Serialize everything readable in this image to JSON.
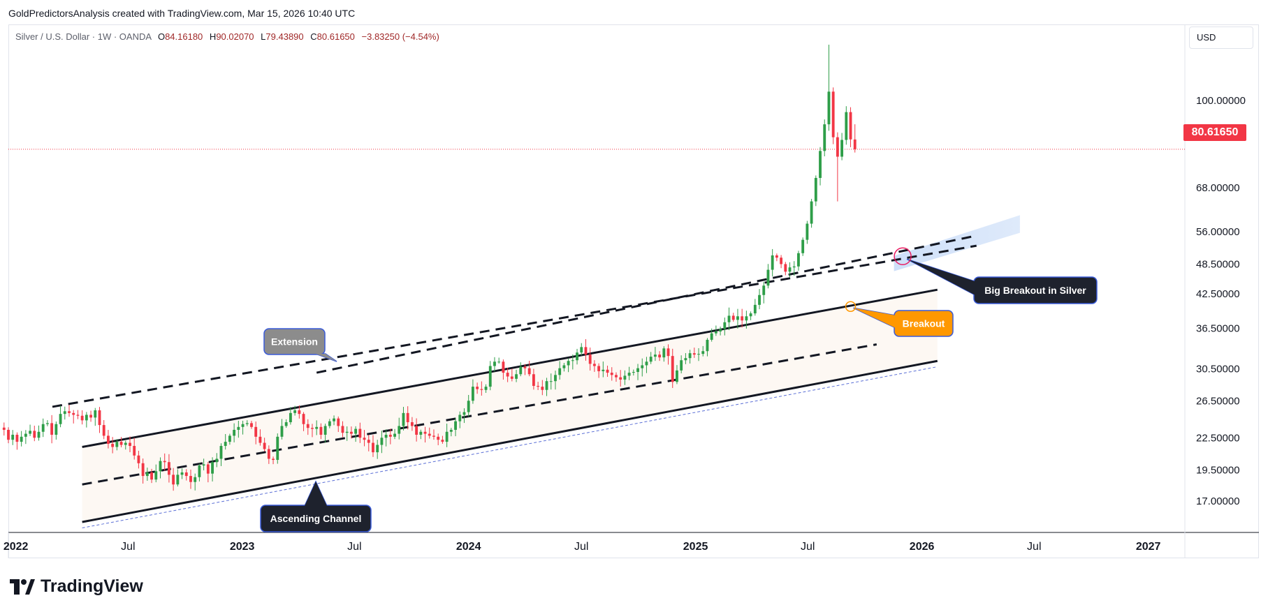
{
  "header": {
    "attribution": "GoldPredictorsAnalysis created with TradingView.com, Mar 15, 2026 10:40 UTC"
  },
  "legend": {
    "symbol": "Silver / U.S. Dollar · 1W · OANDA",
    "open_label": "O",
    "open": "84.16180",
    "high_label": "H",
    "high": "90.02070",
    "low_label": "L",
    "low": "79.43890",
    "close_label": "C",
    "close": "80.61650",
    "change": "−3.83250 (−4.54%)"
  },
  "currency": "USD",
  "last_price": "80.61650",
  "brand": "TradingView",
  "colors": {
    "up": "#22ab94",
    "up_body": "#2e9e48",
    "down": "#f23645",
    "channel_fill": "#fdf8f3",
    "breakout_orange": "#ff9800",
    "callout_dark": "#1e222d",
    "callout_gray": "#8c8c8c",
    "highlight_blue": "#c9dcf8"
  },
  "annotations": {
    "extension": "Extension",
    "ascending_channel": "Ascending Channel",
    "breakout": "Breakout",
    "big_breakout": "Big Breakout in Silver"
  },
  "chart_data": {
    "type": "candlestick",
    "title": "Silver / U.S. Dollar · 1W · OANDA",
    "y_scale": "log",
    "ylim": [
      14.8,
      140
    ],
    "y_ticks": [
      "100.00000",
      "68.00000",
      "56.00000",
      "48.50000",
      "42.50000",
      "36.50000",
      "30.50000",
      "26.50000",
      "22.50000",
      "19.50000",
      "17.00000"
    ],
    "y_tick_values": [
      100,
      68,
      56,
      48.5,
      42.5,
      36.5,
      30.5,
      26.5,
      22.5,
      19.5,
      17
    ],
    "xlim": [
      "2021-12-20",
      "2027-03-01"
    ],
    "x_ticks": [
      "2022",
      "Jul",
      "2023",
      "Jul",
      "2024",
      "Jul",
      "2025",
      "Jul",
      "2026",
      "Jul",
      "2027"
    ],
    "x_tick_dates": [
      "2022-01-01",
      "2022-07-01",
      "2023-01-01",
      "2023-07-01",
      "2024-01-01",
      "2024-07-01",
      "2025-01-01",
      "2025-07-01",
      "2026-01-01",
      "2026-07-01",
      "2027-01-01"
    ],
    "current_price": 80.6165,
    "series": [
      {
        "date_range": [
          "2021-12-13",
          "2026-03-09"
        ],
        "approx_weekly_close": [
          23.3,
          22.3,
          22.8,
          22.1,
          22.6,
          22.9,
          23.2,
          22.5,
          23.1,
          23.9,
          24.0,
          22.8,
          23.9,
          25.0,
          25.3,
          25.1,
          24.9,
          24.8,
          24.3,
          24.9,
          24.6,
          25.4,
          23.8,
          22.7,
          21.9,
          21.6,
          22.1,
          21.8,
          22.0,
          21.7,
          20.8,
          20.1,
          19.0,
          19.3,
          18.7,
          19.4,
          20.3,
          20.2,
          19.1,
          18.3,
          19.1,
          19.3,
          19.0,
          18.5,
          18.9,
          19.9,
          20.0,
          19.2,
          20.2,
          20.5,
          21.7,
          22.1,
          22.7,
          23.3,
          23.6,
          23.9,
          24.0,
          23.6,
          22.6,
          22.0,
          21.4,
          20.5,
          20.4,
          22.6,
          23.7,
          24.1,
          25.1,
          25.4,
          25.0,
          23.9,
          23.5,
          23.4,
          23.6,
          22.8,
          23.7,
          24.2,
          24.5,
          23.7,
          23.0,
          23.1,
          22.9,
          23.4,
          22.5,
          22.3,
          22.0,
          21.1,
          21.8,
          22.5,
          22.8,
          22.6,
          22.9,
          23.7,
          25.1,
          24.1,
          23.7,
          22.8,
          23.1,
          22.9,
          22.7,
          22.6,
          22.3,
          22.1,
          23.1,
          23.3,
          24.2,
          24.9,
          25.2,
          26.5,
          28.2,
          27.9,
          27.8,
          28.2,
          30.9,
          31.5,
          31.5,
          30.0,
          29.5,
          29.2,
          29.8,
          30.8,
          30.6,
          29.8,
          28.3,
          28.2,
          27.8,
          28.9,
          28.9,
          29.7,
          30.6,
          31.0,
          31.6,
          31.7,
          32.8,
          33.6,
          32.5,
          31.2,
          30.9,
          30.2,
          30.4,
          30.0,
          29.7,
          29.4,
          29.1,
          29.6,
          30.0,
          30.1,
          30.6,
          31.0,
          31.5,
          32.2,
          32.5,
          32.1,
          33.4,
          32.3,
          28.8,
          30.3,
          31.7,
          32.0,
          32.7,
          32.5,
          32.6,
          33.0,
          34.7,
          35.7,
          36.0,
          36.4,
          37.5,
          38.6,
          37.9,
          38.5,
          37.8,
          38.5,
          39.0,
          40.5,
          42.3,
          44.1,
          47.3,
          50.4,
          49.9,
          48.5,
          46.9,
          47.8,
          48.0,
          50.9,
          54.0,
          58.0,
          64.0,
          71.0,
          80.0,
          90.0,
          104.0,
          85.0,
          78.0,
          84.0,
          95.0,
          84.2,
          80.6
        ]
      }
    ],
    "overlays": [
      {
        "name": "ascending channel upper",
        "from": [
          "2022-04-18",
          21.6
        ],
        "to": [
          "2026-01-26",
          43.3
        ]
      },
      {
        "name": "ascending channel lower",
        "from": [
          "2022-04-18",
          15.5
        ],
        "to": [
          "2026-01-26",
          31.6
        ]
      },
      {
        "name": "channel midline (dashed)",
        "from": [
          "2022-04-18",
          18.3
        ],
        "to": [
          "2025-10-20",
          34.0
        ]
      },
      {
        "name": "extension line (dashed)",
        "from": [
          "2022-03-01",
          25.8
        ],
        "to": [
          "2026-03-30",
          52.6
        ]
      },
      {
        "name": "extension line 2 (dashed)",
        "from": [
          "2023-05-01",
          30.0
        ],
        "to": [
          "2026-03-30",
          55.0
        ]
      },
      {
        "name": "lower support (thin dashed blue)",
        "from": [
          "2022-04-18",
          15.1
        ],
        "to": [
          "2026-01-26",
          30.8
        ]
      }
    ],
    "breakouts": [
      {
        "label": "Breakout",
        "date": "2025-09-08",
        "price": 40.2
      },
      {
        "label": "Big Breakout in Silver",
        "date": "2025-12-01",
        "price": 50.2
      }
    ]
  }
}
